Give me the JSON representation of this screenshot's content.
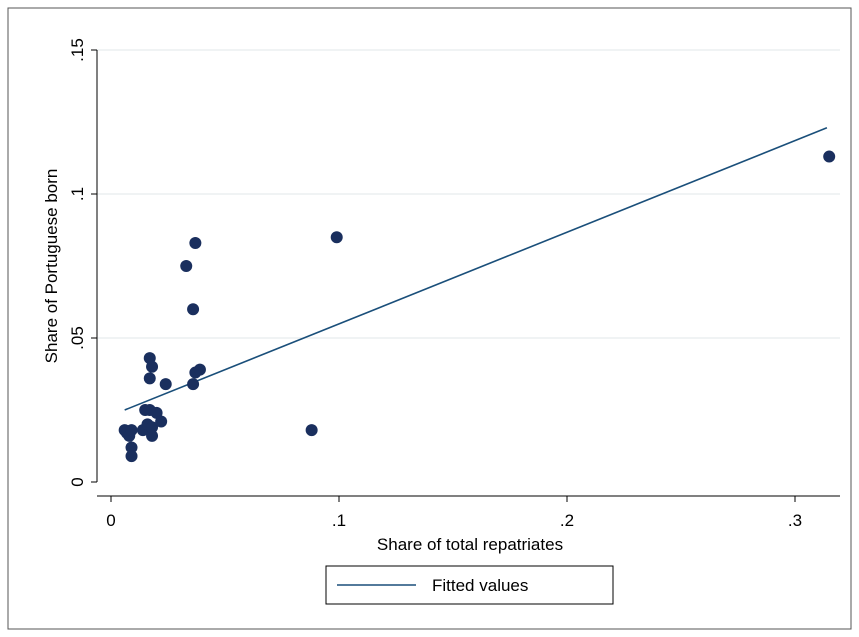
{
  "chart_data": {
    "type": "scatter",
    "title": "",
    "xlabel": "Share of total repatriates",
    "ylabel": "Share of Portuguese born",
    "xlim": [
      0,
      0.32
    ],
    "ylim": [
      0,
      0.15
    ],
    "x_ticks": [
      0,
      0.1,
      0.2,
      0.3
    ],
    "x_tick_labels": [
      "0",
      ".1",
      ".2",
      ".3"
    ],
    "y_ticks": [
      0,
      0.05,
      0.1,
      0.15
    ],
    "y_tick_labels": [
      "0",
      ".05",
      ".1",
      ".15"
    ],
    "grid": true,
    "legend_position": "bottom-center",
    "series": [
      {
        "type": "scatter",
        "color": "#1a2f5e",
        "points": [
          [
            0.006,
            0.018
          ],
          [
            0.007,
            0.017
          ],
          [
            0.008,
            0.016
          ],
          [
            0.009,
            0.018
          ],
          [
            0.009,
            0.012
          ],
          [
            0.009,
            0.009
          ],
          [
            0.014,
            0.018
          ],
          [
            0.015,
            0.025
          ],
          [
            0.016,
            0.02
          ],
          [
            0.017,
            0.025
          ],
          [
            0.017,
            0.043
          ],
          [
            0.017,
            0.036
          ],
          [
            0.018,
            0.016
          ],
          [
            0.018,
            0.019
          ],
          [
            0.018,
            0.04
          ],
          [
            0.02,
            0.024
          ],
          [
            0.022,
            0.021
          ],
          [
            0.024,
            0.034
          ],
          [
            0.033,
            0.075
          ],
          [
            0.036,
            0.06
          ],
          [
            0.036,
            0.034
          ],
          [
            0.037,
            0.038
          ],
          [
            0.037,
            0.083
          ],
          [
            0.039,
            0.039
          ],
          [
            0.088,
            0.018
          ],
          [
            0.099,
            0.085
          ],
          [
            0.315,
            0.113
          ]
        ]
      },
      {
        "name": "Fitted values",
        "type": "line",
        "color": "#1a4f7a",
        "points": [
          [
            0.006,
            0.025
          ],
          [
            0.314,
            0.123
          ]
        ]
      }
    ]
  }
}
